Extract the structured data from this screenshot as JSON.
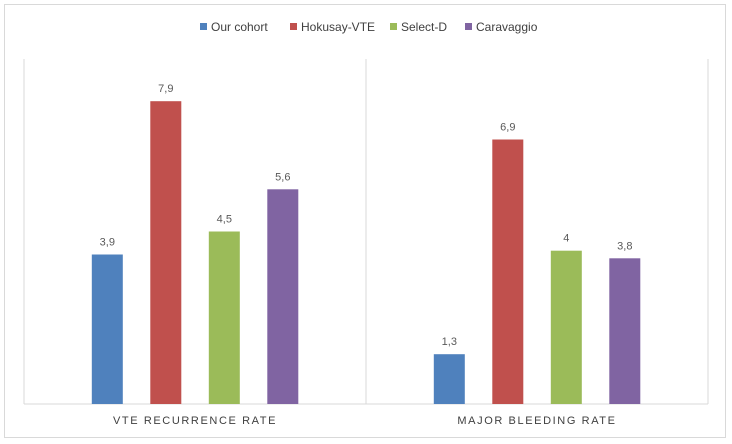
{
  "chart_data": {
    "type": "bar",
    "title": "",
    "xlabel": "",
    "ylabel": "",
    "ylim": [
      0,
      9
    ],
    "grid": false,
    "legend_position": "top",
    "categories": [
      "VTE RECURRENCE RATE",
      "MAJOR BLEEDING RATE"
    ],
    "series": [
      {
        "name": "Our cohort",
        "color": "#4F81BD",
        "values": [
          3.9,
          1.3
        ],
        "labels": [
          "3,9",
          "1,3"
        ]
      },
      {
        "name": "Hokusay-VTE",
        "color": "#C0504D",
        "values": [
          7.9,
          6.9
        ],
        "labels": [
          "7,9",
          "6,9"
        ]
      },
      {
        "name": "Select-D",
        "color": "#9BBB59",
        "values": [
          4.5,
          4
        ],
        "labels": [
          "4,5",
          "4"
        ]
      },
      {
        "name": "Caravaggio",
        "color": "#8064A2",
        "values": [
          5.6,
          3.8
        ],
        "labels": [
          "5,6",
          "3,8"
        ]
      }
    ]
  }
}
